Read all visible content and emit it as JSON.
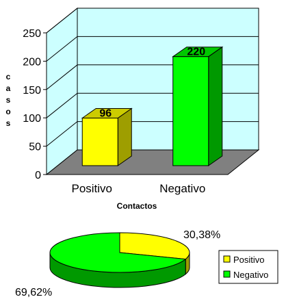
{
  "chart_data": [
    {
      "type": "bar",
      "categories": [
        "Positivo",
        "Negativo"
      ],
      "values": [
        96,
        220
      ],
      "data_labels": [
        "96",
        "220"
      ],
      "ylabel": "c a s o s",
      "xlabel": "Contactos",
      "ylim": [
        0,
        250
      ],
      "yticks": [
        "0",
        "50",
        "100",
        "150",
        "200",
        "250"
      ],
      "grid": true,
      "style": "3d",
      "colors": {
        "Positivo": "#ffff00",
        "Negativo": "#00ff00",
        "wall": "#ccffff",
        "floor": "#808080"
      }
    },
    {
      "type": "pie",
      "style": "3d",
      "labels": [
        "Positivo",
        "Negativo"
      ],
      "values": [
        30.38,
        69.62
      ],
      "data_labels": [
        "30,38%",
        "69,62%"
      ],
      "colors": [
        "#ffff00",
        "#00ff00"
      ],
      "legend": {
        "placement": "right",
        "items": [
          {
            "label": "Positivo",
            "color": "#ffff00"
          },
          {
            "label": "Negativo",
            "color": "#00ff00"
          }
        ]
      }
    }
  ]
}
